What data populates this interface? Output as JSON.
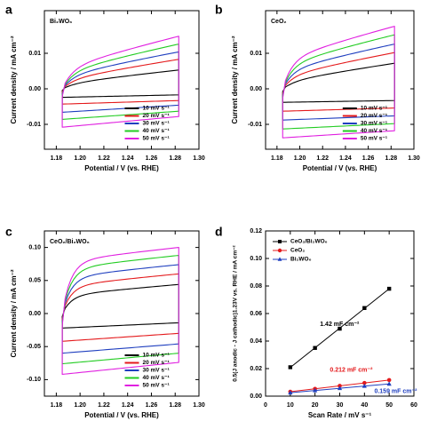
{
  "panels": [
    {
      "letter": "a",
      "sample_label": "Bi₂WO₆",
      "xlabel": "Potential / V (vs. RHE)",
      "ylabel": "Current density / mA cm⁻²",
      "legend": [
        "10 mV s⁻¹",
        "20 mV s⁻¹",
        "30 mV s⁻¹",
        "40 mV s⁻¹",
        "50 mV s⁻¹"
      ],
      "x_ticks": [
        "1.18",
        "1.20",
        "1.22",
        "1.24",
        "1.26",
        "1.28",
        "1.30"
      ],
      "y_ticks": [
        "-0.01",
        "0.00",
        "0.01"
      ]
    },
    {
      "letter": "b",
      "sample_label": "CeO₂",
      "xlabel": "Potential / V (vs. RHE)",
      "ylabel": "Current density / mA cm⁻²",
      "legend": [
        "10 mV s⁻¹",
        "20 mV s⁻¹",
        "30 mV s⁻¹",
        "40 mV s⁻¹",
        "50 mV s⁻¹"
      ],
      "x_ticks": [
        "1.18",
        "1.20",
        "1.22",
        "1.24",
        "1.26",
        "1.28",
        "1.30"
      ],
      "y_ticks": [
        "-0.01",
        "0.00",
        "0.01"
      ]
    },
    {
      "letter": "c",
      "sample_label": "CeO₂/Bi₂WO₆",
      "xlabel": "Potential / V (vs. RHE)",
      "ylabel": "Current density / mA cm⁻²",
      "legend": [
        "10 mV s⁻¹",
        "20 mV s⁻¹",
        "30 mV s⁻¹",
        "40 mV s⁻¹",
        "50 mV s⁻¹"
      ],
      "x_ticks": [
        "1.18",
        "1.20",
        "1.22",
        "1.24",
        "1.26",
        "1.28",
        "1.30"
      ],
      "y_ticks": [
        "-0.10",
        "-0.05",
        "0.00",
        "0.05",
        "0.10"
      ]
    },
    {
      "letter": "d",
      "xlabel": "Scan Rate / mV s⁻¹",
      "ylabel": "0.5(J anodic - J cathodic)1.23V vs. RHE / mA cm⁻²",
      "legend": [
        "CeO₂/Bi₂WO₆",
        "CeO₂",
        "Bi₂WO₆"
      ],
      "x_ticks": [
        "0",
        "10",
        "20",
        "30",
        "40",
        "50",
        "60"
      ],
      "y_ticks": [
        "0.00",
        "0.02",
        "0.04",
        "0.06",
        "0.08",
        "0.10",
        "0.12"
      ],
      "annotations": [
        "1.42 mF cm⁻²",
        "0.212 mF cm⁻²",
        "0.159 mF cm⁻²"
      ]
    }
  ],
  "chart_data": [
    {
      "type": "line",
      "panel": "a",
      "title": "Bi₂WO₆",
      "xlabel": "Potential / V (vs. RHE)",
      "ylabel": "Current density / mA cm⁻²",
      "xlim": [
        1.17,
        1.3
      ],
      "ylim": [
        -0.017,
        0.022
      ],
      "grid": false,
      "legend_position": "bottom-right",
      "x_range_scanned": [
        1.185,
        1.283
      ],
      "series": [
        {
          "name": "10 mV s⁻¹",
          "color": "#000000",
          "anodic_start": 0.001,
          "anodic_end": 0.0053,
          "cathodic_start": -0.0024,
          "cathodic_end": -0.0017
        },
        {
          "name": "20 mV s⁻¹",
          "color": "#e41a1c",
          "anodic_start": 0.002,
          "anodic_end": 0.0083,
          "cathodic_start": -0.0043,
          "cathodic_end": -0.0033
        },
        {
          "name": "30 mV s⁻¹",
          "color": "#1f3fbf",
          "anodic_start": 0.003,
          "anodic_end": 0.0104,
          "cathodic_start": -0.0066,
          "cathodic_end": -0.0046
        },
        {
          "name": "40 mV s⁻¹",
          "color": "#22cc22",
          "anodic_start": 0.004,
          "anodic_end": 0.0126,
          "cathodic_start": -0.0086,
          "cathodic_end": -0.0063
        },
        {
          "name": "50 mV s⁻¹",
          "color": "#e020e0",
          "anodic_start": 0.005,
          "anodic_end": 0.0148,
          "cathodic_start": -0.0108,
          "cathodic_end": -0.0078
        }
      ]
    },
    {
      "type": "line",
      "panel": "b",
      "title": "CeO₂",
      "xlabel": "Potential / V (vs. RHE)",
      "ylabel": "Current density / mA cm⁻²",
      "xlim": [
        1.17,
        1.3
      ],
      "ylim": [
        -0.017,
        0.022
      ],
      "grid": false,
      "legend_position": "bottom-right",
      "x_range_scanned": [
        1.185,
        1.283
      ],
      "series": [
        {
          "name": "10 mV s⁻¹",
          "color": "#000000",
          "anodic_start": 0.0015,
          "anodic_end": 0.0072,
          "cathodic_start": -0.0038,
          "cathodic_end": -0.0033
        },
        {
          "name": "20 mV s⁻¹",
          "color": "#e41a1c",
          "anodic_start": 0.003,
          "anodic_end": 0.0102,
          "cathodic_start": -0.0063,
          "cathodic_end": -0.0054
        },
        {
          "name": "30 mV s⁻¹",
          "color": "#1f3fbf",
          "anodic_start": 0.0045,
          "anodic_end": 0.0126,
          "cathodic_start": -0.0088,
          "cathodic_end": -0.0076
        },
        {
          "name": "40 mV s⁻¹",
          "color": "#22cc22",
          "anodic_start": 0.006,
          "anodic_end": 0.0152,
          "cathodic_start": -0.0113,
          "cathodic_end": -0.0098
        },
        {
          "name": "50 mV s⁻¹",
          "color": "#e020e0",
          "anodic_start": 0.0075,
          "anodic_end": 0.0176,
          "cathodic_start": -0.0138,
          "cathodic_end": -0.0118
        }
      ]
    },
    {
      "type": "line",
      "panel": "c",
      "title": "CeO₂/Bi₂WO₆",
      "xlabel": "Potential / V (vs. RHE)",
      "ylabel": "Current density / mA cm⁻²",
      "xlim": [
        1.17,
        1.3
      ],
      "ylim": [
        -0.125,
        0.125
      ],
      "grid": false,
      "legend_position": "bottom-right",
      "x_range_scanned": [
        1.185,
        1.283
      ],
      "series": [
        {
          "name": "10 mV s⁻¹",
          "color": "#000000",
          "anodic_start": 0.026,
          "anodic_end": 0.044,
          "cathodic_start": -0.022,
          "cathodic_end": -0.014
        },
        {
          "name": "20 mV s⁻¹",
          "color": "#e41a1c",
          "anodic_start": 0.04,
          "anodic_end": 0.06,
          "cathodic_start": -0.042,
          "cathodic_end": -0.03
        },
        {
          "name": "30 mV s⁻¹",
          "color": "#1f3fbf",
          "anodic_start": 0.053,
          "anodic_end": 0.074,
          "cathodic_start": -0.06,
          "cathodic_end": -0.046
        },
        {
          "name": "40 mV s⁻¹",
          "color": "#22cc22",
          "anodic_start": 0.066,
          "anodic_end": 0.088,
          "cathodic_start": -0.076,
          "cathodic_end": -0.06
        },
        {
          "name": "50 mV s⁻¹",
          "color": "#e020e0",
          "anodic_start": 0.077,
          "anodic_end": 0.1,
          "cathodic_start": -0.092,
          "cathodic_end": -0.074
        }
      ]
    },
    {
      "type": "scatter",
      "panel": "d",
      "xlabel": "Scan Rate / mV s⁻¹",
      "ylabel": "0.5(J anodic - J cathodic)1.23V vs. RHE / mA cm⁻²",
      "xlim": [
        0,
        60
      ],
      "ylim": [
        0.0,
        0.12
      ],
      "grid": false,
      "legend_position": "top-left",
      "x": [
        10,
        20,
        30,
        40,
        50
      ],
      "series": [
        {
          "name": "CeO₂/Bi₂WO₆",
          "color": "#000000",
          "marker": "square",
          "values": [
            0.021,
            0.035,
            0.049,
            0.064,
            0.078
          ],
          "slope_label": "1.42 mF cm⁻²"
        },
        {
          "name": "CeO₂",
          "color": "#e41a1c",
          "marker": "circle",
          "values": [
            0.0032,
            0.0053,
            0.0075,
            0.0096,
            0.0117
          ],
          "slope_label": "0.212 mF cm⁻²"
        },
        {
          "name": "Bi₂WO₆",
          "color": "#1f3fbf",
          "marker": "triangle",
          "values": [
            0.0025,
            0.0041,
            0.0057,
            0.0073,
            0.0089
          ],
          "slope_label": "0.159 mF cm⁻²"
        }
      ]
    }
  ]
}
